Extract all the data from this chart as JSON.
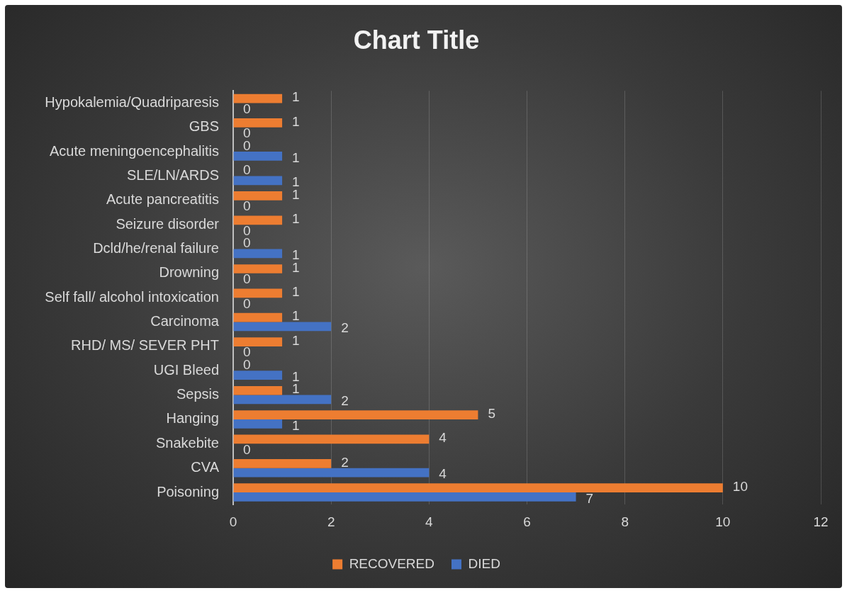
{
  "chart_data": {
    "type": "bar",
    "orientation": "horizontal",
    "title": "Chart Title",
    "categories": [
      "Hypokalemia/Quadriparesis",
      "GBS",
      "Acute meningoencephalitis",
      "SLE/LN/ARDS",
      "Acute pancreatitis",
      "Seizure disorder",
      "Dcld/he/renal failure",
      "Drowning",
      "Self fall/ alcohol intoxication",
      "Carcinoma",
      "RHD/ MS/ SEVER PHT",
      "UGI Bleed",
      "Sepsis",
      "Hanging",
      "Snakebite",
      "CVA",
      "Poisoning"
    ],
    "series": [
      {
        "name": "RECOVERED",
        "color": "#ed7d31",
        "values": [
          1,
          1,
          0,
          0,
          1,
          1,
          0,
          1,
          1,
          1,
          1,
          0,
          1,
          5,
          4,
          2,
          10
        ]
      },
      {
        "name": "DIED",
        "color": "#4472c4",
        "values": [
          0,
          0,
          1,
          1,
          0,
          0,
          1,
          0,
          0,
          2,
          0,
          1,
          2,
          1,
          0,
          4,
          7
        ]
      }
    ],
    "xlim": [
      0,
      12
    ],
    "xticks": [
      0,
      2,
      4,
      6,
      8,
      10,
      12
    ],
    "grid": "x",
    "legend": "bottom",
    "data_labels": true
  }
}
